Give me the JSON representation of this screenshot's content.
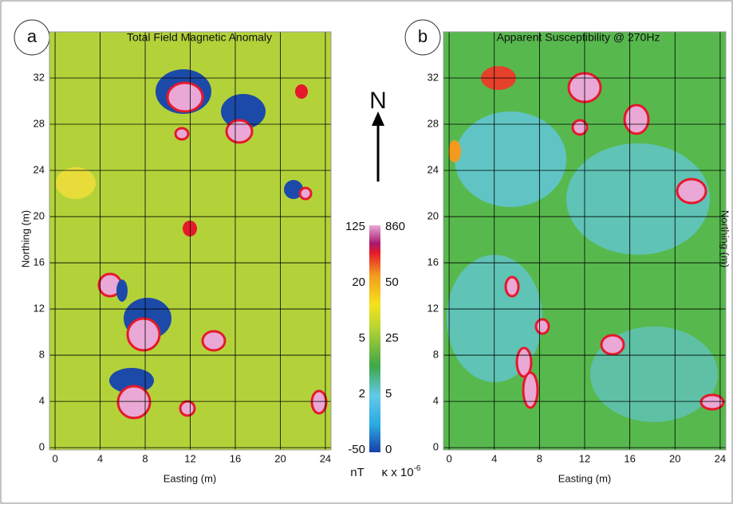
{
  "panels": [
    {
      "label": "a",
      "title": "Total Field Magnetic Anomaly",
      "xlabel": "Easting (m)",
      "ylabel": "Northing (m)",
      "xlim": [
        -0.5,
        24.5
      ],
      "ylim": [
        -0.2,
        36
      ],
      "xticks": [
        0,
        4,
        8,
        12,
        16,
        20,
        24
      ],
      "yticks": [
        0,
        4,
        8,
        12,
        16,
        20,
        24,
        28,
        32
      ]
    },
    {
      "label": "b",
      "title": "Apparent Susceptibility @ 270Hz",
      "xlabel": "Easting (m)",
      "ylabel": "Northing (m)",
      "xlim": [
        -0.5,
        24.5
      ],
      "ylim": [
        -0.2,
        36
      ],
      "xticks": [
        0,
        4,
        8,
        12,
        16,
        20,
        24
      ],
      "yticks": [
        0,
        4,
        8,
        12,
        16,
        20,
        24,
        28,
        32
      ]
    }
  ],
  "north": "N",
  "colorbar": {
    "left_labels": [
      125,
      20,
      5,
      2,
      -50
    ],
    "right_labels": [
      860,
      50,
      25,
      5,
      0
    ],
    "left_unit": "nT",
    "right_unit": "κ x 10",
    "right_unit_exponent": "-6"
  }
}
